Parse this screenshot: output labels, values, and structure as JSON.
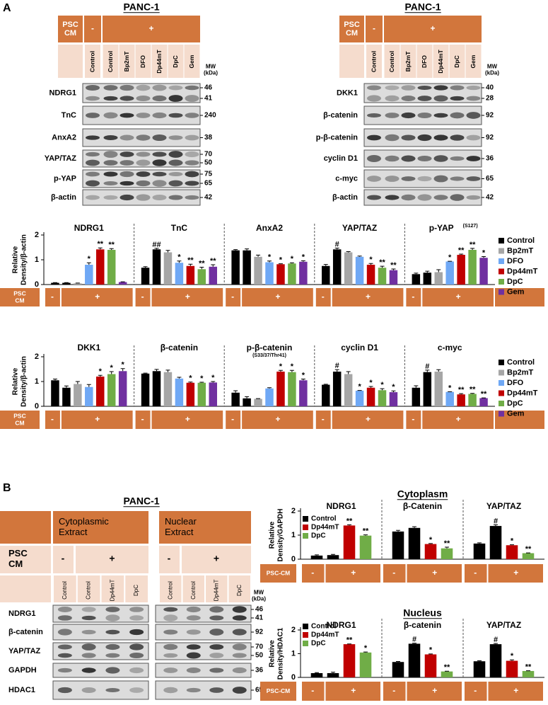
{
  "panel_a": {
    "label": "A",
    "blots": [
      {
        "title": "PANC-1",
        "psc_label": [
          "PSC",
          "CM"
        ],
        "minus": "-",
        "plus": "+",
        "lanes": [
          "Control",
          "Control",
          "Bp2mT",
          "DFO",
          "Dp44mT",
          "DpC",
          "Gem"
        ],
        "mw_label": [
          "MW",
          "(kDa)"
        ],
        "rows": [
          {
            "name": "NDRG1",
            "mw": [
              46,
              41
            ]
          },
          {
            "name": "TnC",
            "mw": [
              240
            ]
          },
          {
            "name": "AnxA2",
            "mw": [
              38
            ]
          },
          {
            "name": "YAP/TAZ",
            "mw": [
              70,
              50
            ]
          },
          {
            "name": "p-YAP",
            "mw": [
              75,
              65
            ]
          },
          {
            "name": "β-actin",
            "mw": [
              42
            ]
          }
        ]
      },
      {
        "title": "PANC-1",
        "psc_label": [
          "PSC",
          "CM"
        ],
        "minus": "-",
        "plus": "+",
        "lanes": [
          "Control",
          "Control",
          "Bp2mT",
          "DFO",
          "Dp44mT",
          "DpC",
          "Gem"
        ],
        "mw_label": [
          "MW",
          "(kDa)"
        ],
        "rows": [
          {
            "name": "DKK1",
            "mw": [
              40,
              28
            ]
          },
          {
            "name": "β-catenin",
            "mw": [
              92
            ]
          },
          {
            "name": "p-β-catenin",
            "mw": [
              92
            ]
          },
          {
            "name": "cyclin D1",
            "mw": [
              36
            ]
          },
          {
            "name": "c-myc",
            "mw": [
              65
            ]
          },
          {
            "name": "β-actin",
            "mw": [
              42
            ]
          }
        ]
      }
    ],
    "charts": [
      {
        "type": "bar",
        "y_label": [
          "Relative",
          "Density/β-actin"
        ],
        "ylim": [
          0,
          2
        ],
        "yticks": [
          0,
          1,
          2
        ],
        "bar_colors": [
          "#000000",
          "#000000",
          "#a6a6a6",
          "#6fa8f5",
          "#c00000",
          "#70ad47",
          "#7030a0"
        ],
        "legend": [
          {
            "name": "Control",
            "color": "#000000"
          },
          {
            "name": "Bp2mT",
            "color": "#a6a6a6"
          },
          {
            "name": "DFO",
            "color": "#6fa8f5"
          },
          {
            "name": "Dp44mT",
            "color": "#c00000"
          },
          {
            "name": "DpC",
            "color": "#70ad47"
          },
          {
            "name": "Gem",
            "color": "#7030a0"
          }
        ],
        "psc_label": [
          "PSC",
          "CM"
        ],
        "minus": "-",
        "plus": "+",
        "groups": [
          {
            "title": "NDRG1",
            "values": [
              0.07,
              0.07,
              0.05,
              0.8,
              1.42,
              1.4,
              0.1
            ],
            "errors": [
              0.01,
              0.01,
              0.01,
              0.08,
              0.06,
              0.05,
              0.01
            ],
            "annotations": [
              null,
              null,
              null,
              "*",
              "**",
              "**",
              null
            ]
          },
          {
            "title": "TnC",
            "values": [
              0.68,
              1.42,
              1.3,
              0.88,
              0.75,
              0.62,
              0.72
            ],
            "errors": [
              0.04,
              0.04,
              0.08,
              0.07,
              0.07,
              0.08,
              0.08
            ],
            "annotations": [
              null,
              "##",
              null,
              "*",
              "**",
              "**",
              "**"
            ]
          },
          {
            "title": "AnxA2",
            "values": [
              1.38,
              1.38,
              1.12,
              0.9,
              0.82,
              0.85,
              0.92
            ],
            "errors": [
              0.03,
              0.06,
              0.07,
              0.05,
              0.02,
              0.03,
              0.04
            ],
            "annotations": [
              null,
              null,
              null,
              "*",
              "*",
              "*",
              "*"
            ]
          },
          {
            "title": "YAP/TAZ",
            "values": [
              0.75,
              1.42,
              1.3,
              1.12,
              0.8,
              0.68,
              0.58
            ],
            "errors": [
              0.06,
              0.05,
              0.03,
              0.03,
              0.05,
              0.06,
              0.05
            ],
            "annotations": [
              null,
              "#",
              null,
              null,
              "*",
              "**",
              "**"
            ]
          },
          {
            "title": "p-YAP",
            "title_sup": "(S127)",
            "values": [
              0.42,
              0.48,
              0.5,
              0.93,
              1.2,
              1.4,
              1.08
            ],
            "errors": [
              0.04,
              0.06,
              0.1,
              0.01,
              0.03,
              0.06,
              0.05
            ],
            "annotations": [
              null,
              null,
              null,
              "*",
              "**",
              "**",
              "*"
            ]
          }
        ]
      },
      {
        "type": "bar",
        "y_label": [
          "Relative",
          "Density/β-actin"
        ],
        "ylim": [
          0,
          2
        ],
        "yticks": [
          0,
          1,
          2
        ],
        "bar_colors": [
          "#000000",
          "#000000",
          "#a6a6a6",
          "#6fa8f5",
          "#c00000",
          "#70ad47",
          "#7030a0"
        ],
        "legend": [
          {
            "name": "Control",
            "color": "#000000"
          },
          {
            "name": "Bp2mT",
            "color": "#a6a6a6"
          },
          {
            "name": "DFO",
            "color": "#6fa8f5"
          },
          {
            "name": "Dp44mT",
            "color": "#c00000"
          },
          {
            "name": "DpC",
            "color": "#70ad47"
          },
          {
            "name": "Gem",
            "color": "#7030a0"
          }
        ],
        "psc_label": [
          "PSC",
          "CM"
        ],
        "minus": "-",
        "plus": "+",
        "groups": [
          {
            "title": "DKK1",
            "values": [
              1.05,
              0.75,
              0.9,
              0.78,
              1.2,
              1.3,
              1.42
            ],
            "errors": [
              0.05,
              0.07,
              0.1,
              0.1,
              0.05,
              0.1,
              0.1
            ],
            "annotations": [
              null,
              null,
              null,
              null,
              "*",
              "*",
              "*"
            ]
          },
          {
            "title": "β-catenin",
            "values": [
              1.32,
              1.42,
              1.38,
              1.12,
              0.95,
              0.95,
              0.96
            ],
            "errors": [
              0.02,
              0.07,
              0.08,
              0.05,
              0.03,
              0.02,
              0.04
            ],
            "annotations": [
              null,
              null,
              null,
              null,
              "*",
              "*",
              "*"
            ]
          },
          {
            "title": "p-β-catenin",
            "subtitle": "(S33/37/Thr41)",
            "values": [
              0.55,
              0.32,
              0.3,
              0.72,
              1.4,
              1.38,
              1.05
            ],
            "errors": [
              0.08,
              0.07,
              0.01,
              0.03,
              0.05,
              0.07,
              0.05
            ],
            "annotations": [
              null,
              null,
              null,
              null,
              "*",
              "*",
              "*"
            ]
          },
          {
            "title": "cyclin D1",
            "values": [
              0.87,
              1.4,
              1.3,
              0.63,
              0.75,
              0.65,
              0.57
            ],
            "errors": [
              0.02,
              0.08,
              0.1,
              0.01,
              0.05,
              0.06,
              0.05
            ],
            "annotations": [
              null,
              "#",
              null,
              "*",
              "*",
              "*",
              "*"
            ]
          },
          {
            "title": "c-myc",
            "values": [
              0.75,
              1.38,
              1.4,
              0.58,
              0.48,
              0.5,
              0.33
            ],
            "errors": [
              0.08,
              0.08,
              0.08,
              0.01,
              0.03,
              0.02,
              0.01
            ],
            "annotations": [
              null,
              "#",
              null,
              "*",
              "**",
              "**",
              "**"
            ]
          }
        ]
      }
    ]
  },
  "panel_b": {
    "label": "B",
    "blot": {
      "title": "PANC-1",
      "extracts": [
        [
          "Cytoplasmic",
          "Extract"
        ],
        [
          "Nuclear",
          "Extract"
        ]
      ],
      "psc_label": [
        "PSC",
        "CM"
      ],
      "minus": "-",
      "plus": "+",
      "lanes": [
        "Control",
        "Control",
        "Dp44mT",
        "DpC"
      ],
      "mw_label": [
        "MW",
        "(kDa)"
      ],
      "rows": [
        {
          "name": "NDRG1",
          "mw": [
            46,
            41
          ]
        },
        {
          "name": "β-catenin",
          "mw": [
            92
          ]
        },
        {
          "name": "YAP/TAZ",
          "mw": [
            70,
            50
          ]
        },
        {
          "name": "GAPDH",
          "mw": [
            36
          ]
        },
        {
          "name": "HDAC1",
          "mw": [
            65
          ]
        }
      ]
    },
    "charts": [
      {
        "type": "bar",
        "title": "Cytoplasm",
        "y_label": [
          "Relative",
          "Density/GAPDH"
        ],
        "ylim": [
          0,
          2
        ],
        "yticks": [
          0,
          1,
          2
        ],
        "bar_colors": [
          "#000000",
          "#000000",
          "#c00000",
          "#70ad47"
        ],
        "legend": [
          {
            "name": "Control",
            "color": "#000000"
          },
          {
            "name": "Dp44mT",
            "color": "#c00000"
          },
          {
            "name": "DpC",
            "color": "#70ad47"
          }
        ],
        "psc_label": [
          "PSC-CM"
        ],
        "minus": "-",
        "plus": "+",
        "groups": [
          {
            "title": "NDRG1",
            "values": [
              0.15,
              0.17,
              1.4,
              0.98
            ],
            "errors": [
              0.03,
              0.03,
              0.03,
              0.03
            ],
            "annotations": [
              null,
              null,
              "**",
              "**"
            ]
          },
          {
            "title": "β-Catenin",
            "values": [
              1.15,
              1.3,
              0.63,
              0.45
            ],
            "errors": [
              0.05,
              0.05,
              0.02,
              0.05
            ],
            "annotations": [
              null,
              null,
              "*",
              "**"
            ]
          },
          {
            "title": "YAP/TAZ",
            "values": [
              0.65,
              1.38,
              0.58,
              0.25
            ],
            "errors": [
              0.03,
              0.05,
              0.02,
              0.01
            ],
            "annotations": [
              null,
              "#",
              "*",
              "**"
            ]
          }
        ]
      },
      {
        "type": "bar",
        "title": "Nucleus",
        "y_label": [
          "Relative",
          "Density/HDAC1"
        ],
        "ylim": [
          0,
          2
        ],
        "yticks": [
          0,
          1,
          2
        ],
        "bar_colors": [
          "#000000",
          "#000000",
          "#c00000",
          "#70ad47"
        ],
        "legend": [
          {
            "name": "Control",
            "color": "#000000"
          },
          {
            "name": "Dp44mT",
            "color": "#c00000"
          },
          {
            "name": "DpC",
            "color": "#70ad47"
          }
        ],
        "psc_label": [
          "PSC-CM"
        ],
        "minus": "-",
        "plus": "+",
        "groups": [
          {
            "title": "NDRG1",
            "values": [
              0.18,
              0.18,
              1.4,
              1.05
            ],
            "errors": [
              0.02,
              0.04,
              0.01,
              0.02
            ],
            "annotations": [
              null,
              null,
              "**",
              "*"
            ]
          },
          {
            "title": "β-catenin",
            "values": [
              0.65,
              1.42,
              0.97,
              0.25
            ],
            "errors": [
              0.02,
              0.02,
              0.02,
              0.01
            ],
            "annotations": [
              null,
              "#",
              "*",
              "**"
            ]
          },
          {
            "title": "YAP/TAZ",
            "values": [
              0.68,
              1.4,
              0.7,
              0.27
            ],
            "errors": [
              0.02,
              0.03,
              0.04,
              0.01
            ],
            "annotations": [
              null,
              "#",
              "*",
              "**"
            ]
          }
        ]
      }
    ]
  }
}
